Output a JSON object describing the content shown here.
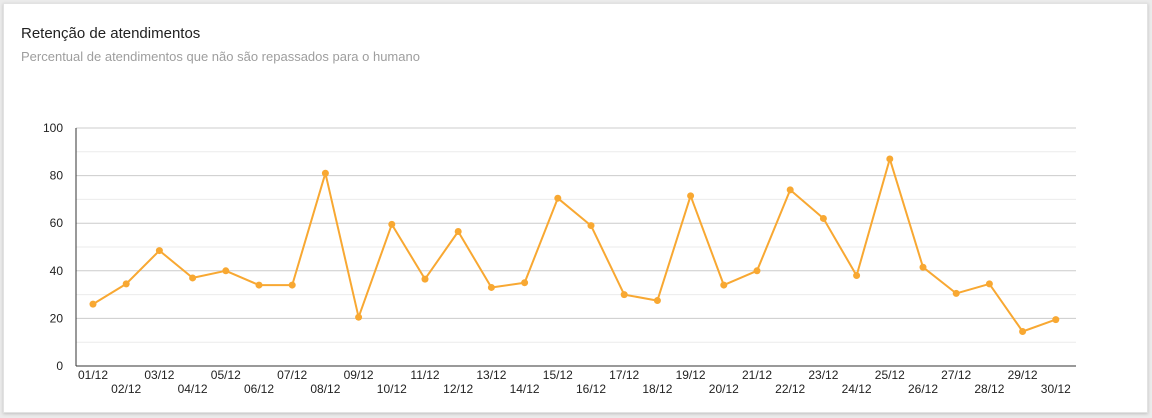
{
  "card": {
    "title": "Retenção de atendimentos",
    "subtitle": "Percentual de atendimentos que não são repassados para o humano"
  },
  "chart_data": {
    "type": "line",
    "title": "Retenção de atendimentos",
    "subtitle": "Percentual de atendimentos que não são repassados para o humano",
    "xlabel": "",
    "ylabel": "",
    "categories": [
      "01/12",
      "02/12",
      "03/12",
      "04/12",
      "05/12",
      "06/12",
      "07/12",
      "08/12",
      "09/12",
      "10/12",
      "11/12",
      "12/12",
      "13/12",
      "14/12",
      "15/12",
      "16/12",
      "17/12",
      "18/12",
      "19/12",
      "20/12",
      "21/12",
      "22/12",
      "23/12",
      "24/12",
      "25/12",
      "26/12",
      "27/12",
      "28/12",
      "29/12",
      "30/12"
    ],
    "values": [
      26,
      34.5,
      48.5,
      37,
      40,
      34,
      34,
      81,
      20.5,
      59.5,
      36.5,
      56.5,
      33,
      35,
      70.5,
      59,
      30,
      27.5,
      71.5,
      34,
      40,
      74,
      62,
      38,
      87,
      41.5,
      30.5,
      34.5,
      14.5,
      19.5
    ],
    "ylim": [
      0,
      100
    ],
    "yticks": [
      0,
      20,
      40,
      60,
      80,
      100
    ],
    "grid": true,
    "legend": "none",
    "colors": {
      "line": "#f8a832",
      "grid": "#cccccc",
      "minor_grid": "#ebebeb",
      "axis": "#333333"
    }
  }
}
